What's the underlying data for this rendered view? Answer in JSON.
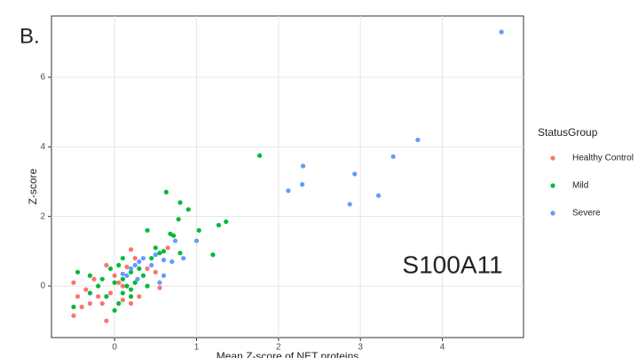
{
  "page_label": "B.",
  "chart_data": {
    "type": "scatter",
    "annotation": "S100A11",
    "x_label": "Mean Z-score of NET proteins",
    "y_label": "Z-score",
    "legend_title": "StatusGroup",
    "legend": "right",
    "grid": true,
    "xlim": [
      -0.77,
      4.99
    ],
    "ylim": [
      -1.48,
      7.76
    ],
    "xticks": [
      0,
      1,
      2,
      3,
      4
    ],
    "yticks": [
      0,
      2,
      4,
      6
    ],
    "series": [
      {
        "name": "Healthy Control",
        "color": "#F8766D",
        "x": [
          -0.5,
          -0.1,
          -0.5,
          -0.45,
          -0.35,
          -0.3,
          -0.2,
          -0.25,
          -0.1,
          0.0,
          0.1,
          0.2,
          0.25,
          0.4,
          0.5,
          0.55,
          0.65,
          0.3,
          0.2,
          0.1,
          -0.05,
          -0.15,
          -0.4,
          0.15,
          0.05
        ],
        "values": [
          -0.85,
          -1.0,
          0.1,
          -0.3,
          -0.1,
          -0.5,
          -0.3,
          0.2,
          0.6,
          0.3,
          0.0,
          1.05,
          0.8,
          0.5,
          0.4,
          -0.05,
          1.1,
          -0.3,
          -0.5,
          -0.4,
          -0.2,
          -0.5,
          -0.6,
          0.55,
          0.1
        ]
      },
      {
        "name": "Mild",
        "color": "#00BA38",
        "x": [
          1.77,
          0.63,
          0.8,
          0.9,
          0.78,
          1.36,
          1.27,
          0.4,
          1.03,
          0.68,
          0.72,
          1.2,
          0.8,
          0.5,
          0.55,
          0.6,
          0.45,
          0.3,
          0.2,
          0.1,
          0.0,
          -0.05,
          0.05,
          0.15,
          0.1,
          0.2,
          0.05,
          0.0,
          -0.1,
          -0.2,
          -0.3,
          -0.45,
          -0.5,
          -0.3,
          0.25,
          0.35,
          0.4,
          0.1,
          -0.15,
          0.2
        ],
        "values": [
          3.75,
          2.7,
          2.4,
          2.2,
          1.92,
          1.85,
          1.75,
          1.6,
          1.6,
          1.5,
          1.45,
          0.9,
          0.95,
          1.1,
          0.95,
          1.0,
          0.8,
          0.5,
          0.4,
          0.2,
          0.1,
          0.5,
          0.6,
          0.0,
          -0.2,
          -0.3,
          -0.5,
          -0.7,
          -0.3,
          0.0,
          0.3,
          0.4,
          -0.6,
          -0.2,
          0.1,
          0.3,
          0.0,
          0.8,
          0.2,
          -0.1
        ]
      },
      {
        "name": "Severe",
        "color": "#619CFF",
        "x": [
          4.72,
          3.7,
          3.4,
          2.93,
          2.3,
          2.29,
          2.12,
          3.22,
          2.87,
          1.0,
          0.74,
          0.84,
          0.6,
          0.5,
          0.6,
          0.55,
          0.35,
          0.25,
          0.3,
          0.2,
          0.7,
          0.45,
          0.15,
          0.28,
          0.1
        ],
        "values": [
          7.3,
          4.2,
          3.72,
          3.22,
          3.45,
          2.92,
          2.74,
          2.6,
          2.35,
          1.3,
          1.3,
          0.8,
          0.75,
          0.9,
          0.3,
          0.1,
          0.8,
          0.6,
          0.7,
          0.5,
          0.7,
          0.6,
          0.3,
          0.2,
          0.35
        ]
      }
    ]
  }
}
